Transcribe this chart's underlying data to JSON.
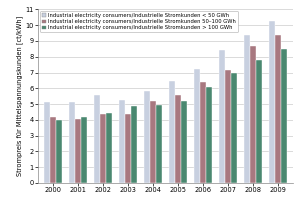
{
  "years": [
    2000,
    2001,
    2002,
    2003,
    2004,
    2005,
    2006,
    2007,
    2008,
    2009
  ],
  "series": {
    "lt50": [
      5.1,
      5.15,
      5.6,
      5.25,
      5.85,
      6.45,
      7.2,
      8.45,
      9.35,
      10.25
    ],
    "50to100": [
      4.2,
      4.05,
      4.4,
      4.35,
      5.2,
      5.55,
      6.4,
      7.15,
      8.7,
      9.4
    ],
    "gt100": [
      4.0,
      4.15,
      4.45,
      4.85,
      4.95,
      5.2,
      6.05,
      7.0,
      7.8,
      8.5
    ]
  },
  "colors": {
    "lt50": "#c8d0e0",
    "50to100": "#a87880",
    "gt100": "#4a8870"
  },
  "legend_labels": [
    "Industrial electricity consumers/Industrielle Stromkunden < 50 GWh",
    "Industrial electricity consumers/Industrielle Stromkunden 50–100 GWh",
    "Industrial electricity consumers/Industrielle Stromkunden > 100 GWh"
  ],
  "ylabel": "Strompreis für Mittelspannungskunden [ct/kWh]",
  "ylim": [
    0,
    11
  ],
  "yticks": [
    0,
    1,
    2,
    3,
    4,
    5,
    6,
    7,
    8,
    9,
    10,
    11
  ],
  "bar_width": 0.25,
  "label_fontsize": 4.8,
  "tick_fontsize": 4.8,
  "legend_fontsize": 3.8,
  "bg_color": "#ffffff",
  "grid_color": "#cccccc",
  "bar_edge_color": "#ffffff"
}
